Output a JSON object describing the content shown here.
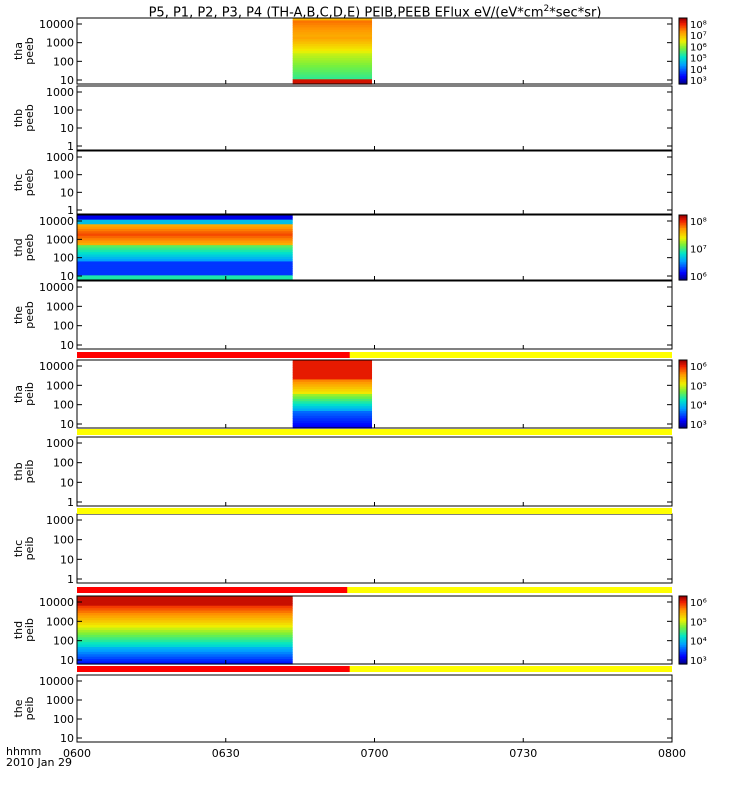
{
  "chart_data": {
    "type": "heatmap",
    "title": {
      "prefix": "P5, P1, P2, P3, P4 (TH-A,B,C,D,E) PEIB,PEEB EFlux eV/(eV*cm",
      "sup": "2",
      "suffix": "*sec*sr)"
    },
    "time_axis": {
      "label_top": "hhmm",
      "label_bottom": "2010 Jan 29",
      "ticks": [
        "0600",
        "0630",
        "0700",
        "0730",
        "0800"
      ],
      "range_minutes": [
        0,
        120
      ]
    },
    "panels": [
      {
        "id": "tha-peeb",
        "label": [
          "tha",
          "peeb"
        ],
        "yticks": [
          "10000",
          "1000",
          "100",
          "10"
        ],
        "data_window": [
          43.5,
          59.5
        ],
        "colorbar": [
          "10⁸",
          "10⁷",
          "10⁶",
          "10⁵",
          "10⁴",
          "10³"
        ]
      },
      {
        "id": "thb-peeb",
        "label": [
          "thb",
          "peeb"
        ],
        "yticks": [
          "1000",
          "100",
          "10",
          "1"
        ],
        "data_window": null,
        "colorbar": null
      },
      {
        "id": "thc-peeb",
        "label": [
          "thc",
          "peeb"
        ],
        "yticks": [
          "1000",
          "100",
          "10",
          "1"
        ],
        "data_window": null,
        "colorbar": null
      },
      {
        "id": "thd-peeb",
        "label": [
          "thd",
          "peeb"
        ],
        "yticks": [
          "10000",
          "1000",
          "100",
          "10"
        ],
        "data_window": [
          0,
          43.5
        ],
        "colorbar": [
          "10⁸",
          "10⁷",
          "10⁶"
        ]
      },
      {
        "id": "the-peeb",
        "label": [
          "the",
          "peeb"
        ],
        "yticks": [
          "10000",
          "1000",
          "100",
          "10"
        ],
        "data_window": null,
        "colorbar": null
      },
      {
        "id": "tha-peib",
        "label": [
          "tha",
          "peib"
        ],
        "yticks": [
          "10000",
          "1000",
          "100",
          "10"
        ],
        "data_window": [
          43.5,
          59.5
        ],
        "colorbar": [
          "10⁶",
          "10⁵",
          "10⁴",
          "10³"
        ]
      },
      {
        "id": "thb-peib",
        "label": [
          "thb",
          "peib"
        ],
        "yticks": [
          "1000",
          "100",
          "10",
          "1"
        ],
        "data_window": null,
        "colorbar": null
      },
      {
        "id": "thc-peib",
        "label": [
          "thc",
          "peib"
        ],
        "yticks": [
          "1000",
          "100",
          "10",
          "1"
        ],
        "data_window": null,
        "colorbar": null
      },
      {
        "id": "thd-peib",
        "label": [
          "thd",
          "peib"
        ],
        "yticks": [
          "10000",
          "1000",
          "100",
          "10"
        ],
        "data_window": [
          0,
          43.5
        ],
        "colorbar": [
          "10⁶",
          "10⁵",
          "10⁴",
          "10³"
        ]
      },
      {
        "id": "the-peib",
        "label": [
          "the",
          "peib"
        ],
        "yticks": [
          "10000",
          "1000",
          "100",
          "10"
        ],
        "data_window": null,
        "colorbar": null
      }
    ],
    "status_bars": [
      {
        "after_panel": 4,
        "red_until": 55
      },
      {
        "after_panel": 5,
        "red_until": 0
      },
      {
        "after_panel": 6,
        "red_until": 0
      },
      {
        "after_panel": 7,
        "red_until": 54.5
      },
      {
        "after_panel": 8,
        "red_until": 55
      }
    ],
    "colors": {
      "status_red": "#ff0000",
      "status_yellow": "#ffff00",
      "axis": "#000000"
    }
  }
}
